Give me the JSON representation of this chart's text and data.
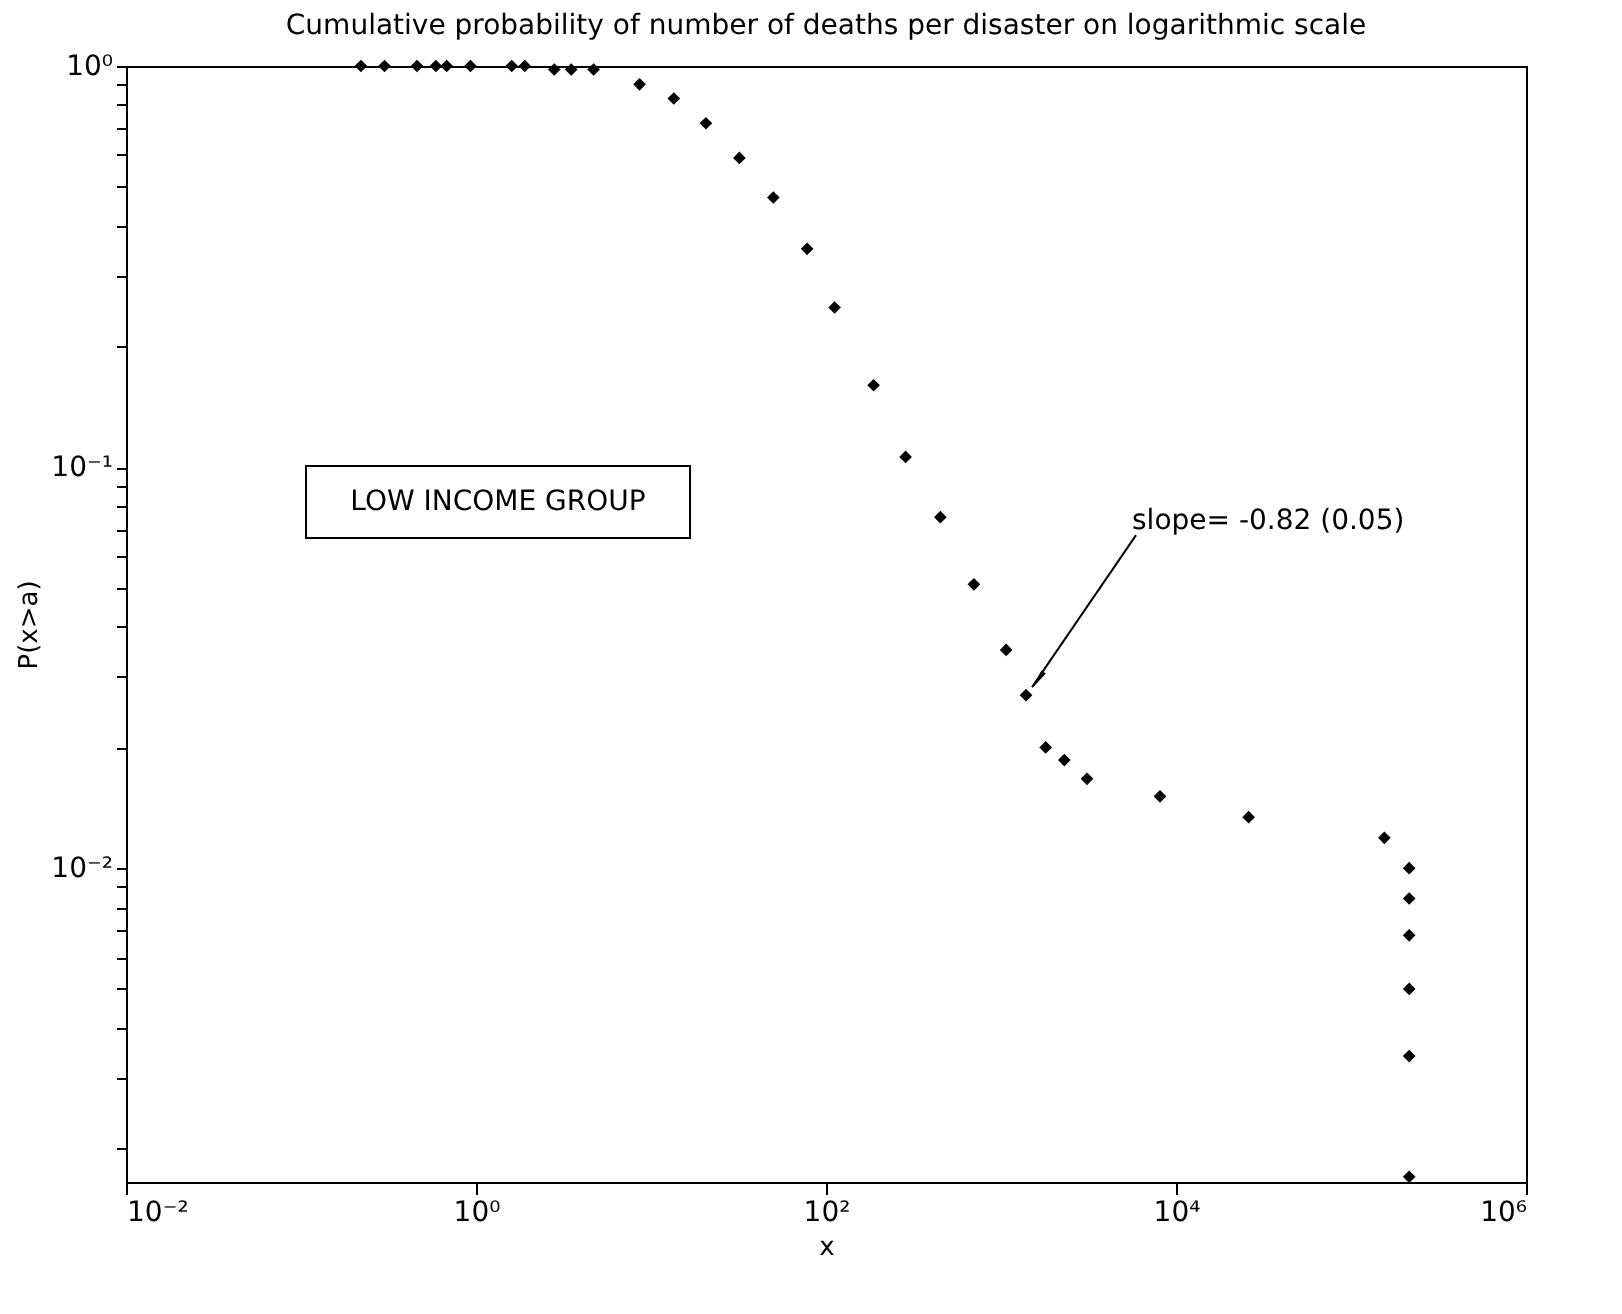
{
  "chart_data": {
    "type": "scatter",
    "title": "Cumulative probability of number of deaths per disaster on logarithmic scale",
    "xlabel": "x",
    "ylabel": "P(x>a)",
    "x": [
      0.22,
      0.3,
      0.46,
      0.59,
      0.68,
      0.93,
      1.6,
      1.9,
      2.8,
      3.5,
      4.7,
      8.6,
      13.5,
      20.6,
      32,
      50,
      78,
      112,
      187,
      285,
      450,
      700,
      1070,
      1390,
      1800,
      2300,
      3100,
      8100,
      26000,
      155000,
      215000,
      215000,
      215000,
      215000,
      215000,
      215000
    ],
    "series": [
      {
        "color": "#000000",
        "values": [
          1.0,
          1.0,
          1.0,
          1.0,
          1.0,
          1.0,
          1.0,
          1.0,
          0.98,
          0.98,
          0.98,
          0.9,
          0.83,
          0.72,
          0.59,
          0.47,
          0.35,
          0.25,
          0.16,
          0.106,
          0.075,
          0.051,
          0.035,
          0.027,
          0.02,
          0.0186,
          0.0167,
          0.0151,
          0.0134,
          0.0119,
          0.01,
          0.0084,
          0.0068,
          0.005,
          0.0034,
          0.0017
        ]
      }
    ],
    "marker": "diamond",
    "log": "xy",
    "grid": false,
    "xlim": [
      0.01,
      1000000
    ],
    "xticks": [
      {
        "value": 0.01,
        "label": "10⁻²"
      },
      {
        "value": 1,
        "label": "10⁰"
      },
      {
        "value": 100,
        "label": "10²"
      },
      {
        "value": 10000,
        "label": "10⁴"
      },
      {
        "value": 1000000,
        "label": "10⁶"
      }
    ],
    "ylim": [
      0.00165,
      1
    ],
    "yticks": [
      {
        "value": 0.002,
        "label": null
      },
      {
        "value": 0.003,
        "label": null
      },
      {
        "value": 0.004,
        "label": null
      },
      {
        "value": 0.005,
        "label": null
      },
      {
        "value": 0.006,
        "label": null
      },
      {
        "value": 0.007,
        "label": null
      },
      {
        "value": 0.008,
        "label": null
      },
      {
        "value": 0.009,
        "label": null
      },
      {
        "value": 0.01,
        "label": "10⁻²"
      },
      {
        "value": 0.02,
        "label": null
      },
      {
        "value": 0.03,
        "label": null
      },
      {
        "value": 0.04,
        "label": null
      },
      {
        "value": 0.05,
        "label": null
      },
      {
        "value": 0.06,
        "label": null
      },
      {
        "value": 0.07,
        "label": null
      },
      {
        "value": 0.08,
        "label": null
      },
      {
        "value": 0.09,
        "label": null
      },
      {
        "value": 0.1,
        "label": "10⁻¹"
      },
      {
        "value": 0.2,
        "label": null
      },
      {
        "value": 0.3,
        "label": null
      },
      {
        "value": 0.4,
        "label": null
      },
      {
        "value": 0.5,
        "label": null
      },
      {
        "value": 0.6,
        "label": null
      },
      {
        "value": 0.7,
        "label": null
      },
      {
        "value": 0.8,
        "label": null
      },
      {
        "value": 0.9,
        "label": null
      },
      {
        "value": 1,
        "label": "10⁰"
      }
    ],
    "annotations": [
      "LOW INCOME GROUP",
      {
        "text": "slope= -0.82 (0.05)",
        "x": 1390,
        "y": 0.027
      }
    ]
  }
}
